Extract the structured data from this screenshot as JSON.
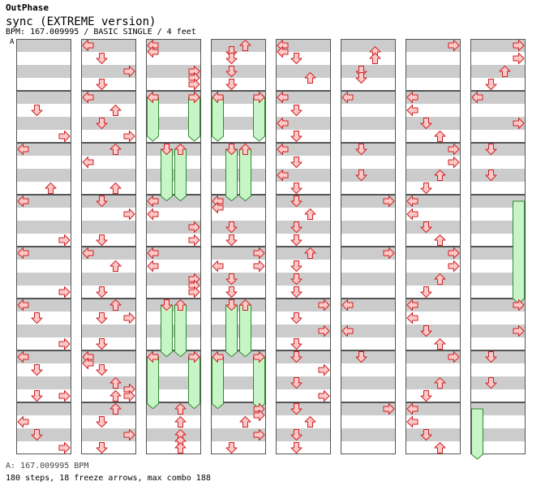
{
  "brand": "OutPhase",
  "song_title": "sync (EXTREME version)",
  "chart_info": "BPM: 167.009995 / BASIC SINGLE / 4 feet",
  "segment_marker": "A",
  "footer_bpm": "A: 167.009995 BPM",
  "footer_stats": "180 steps, 18 freeze arrows, max combo 188",
  "colors": {
    "arrow_fill": "#ffc8c8",
    "arrow_stroke": "#cc2222",
    "freeze_fill": "#c8f5c8",
    "freeze_stroke": "#2e8b2e",
    "stripe": "#cccccc",
    "measure_border": "#555555",
    "bpm_marker": "#4a7fd0"
  },
  "chart_data": {
    "type": "step-chart",
    "lanes": [
      "left",
      "down",
      "up",
      "right"
    ],
    "measures_per_column": 8,
    "quarter_beats_per_measure": 4,
    "columns": [
      [
        [],
        [
          [
            1,
            1
          ],
          [
            3,
            3
          ]
        ],
        [
          [
            0,
            0
          ],
          [
            2,
            3
          ]
        ],
        [
          [
            0,
            0
          ],
          [
            3,
            3
          ]
        ],
        [
          [
            0,
            0
          ],
          [
            3,
            3
          ]
        ],
        [
          [
            0,
            0
          ],
          [
            1,
            1
          ],
          [
            3,
            3
          ]
        ],
        [
          [
            0,
            0
          ],
          [
            1,
            1
          ],
          [
            1,
            3
          ],
          [
            3,
            3
          ]
        ],
        [
          [
            0,
            1
          ],
          [
            1,
            2
          ],
          [
            3,
            3
          ]
        ]
      ],
      [
        [
          [
            0,
            0
          ],
          [
            1,
            1
          ],
          [
            3,
            2
          ],
          [
            1,
            3
          ]
        ],
        [
          [
            0,
            0
          ],
          [
            2,
            1
          ],
          [
            1,
            2
          ],
          [
            3,
            3
          ]
        ],
        [
          [
            2,
            0
          ],
          [
            0,
            1
          ],
          [
            2,
            3
          ]
        ],
        [
          [
            1,
            0
          ],
          [
            3,
            1
          ],
          [
            1,
            3
          ]
        ],
        [
          [
            0,
            0
          ],
          [
            2,
            1
          ],
          [
            1,
            3
          ]
        ],
        [
          [
            2,
            0
          ],
          [
            1,
            1
          ],
          [
            3,
            1
          ],
          [
            1,
            3
          ]
        ],
        [
          [
            0,
            0
          ],
          [
            0,
            0.5
          ],
          [
            1,
            1
          ],
          [
            2,
            2
          ],
          [
            3,
            2.5
          ],
          [
            2,
            3
          ],
          [
            3,
            3
          ]
        ],
        [
          [
            2,
            0
          ],
          [
            1,
            1
          ],
          [
            3,
            2
          ],
          [
            1,
            3
          ]
        ]
      ],
      [
        [
          [
            0,
            0
          ],
          [
            0,
            0.5
          ],
          [
            3,
            2
          ],
          [
            3,
            2.5
          ],
          [
            3,
            3
          ]
        ],
        [
          [
            0,
            0
          ],
          [
            3,
            0
          ]
        ],
        [
          [
            1,
            0
          ],
          [
            2,
            0
          ]
        ],
        [
          [
            0,
            0
          ],
          [
            0,
            1
          ],
          [
            3,
            2
          ],
          [
            3,
            3
          ]
        ],
        [
          [
            0,
            0
          ],
          [
            0,
            1
          ],
          [
            3,
            2
          ],
          [
            3,
            2.5
          ],
          [
            3,
            3
          ]
        ],
        [
          [
            1,
            0
          ],
          [
            2,
            0
          ]
        ],
        [
          [
            0,
            0
          ],
          [
            3,
            0
          ]
        ],
        [
          [
            2,
            0
          ],
          [
            2,
            1
          ],
          [
            2,
            2
          ],
          [
            2,
            2.5
          ],
          [
            2,
            3
          ]
        ]
      ],
      [
        [
          [
            2,
            0
          ],
          [
            1,
            0.5
          ],
          [
            1,
            1
          ],
          [
            1,
            2
          ],
          [
            1,
            3
          ]
        ],
        [
          [
            0,
            0
          ],
          [
            3,
            0
          ]
        ],
        [
          [
            1,
            0
          ],
          [
            2,
            0
          ]
        ],
        [
          [
            0,
            0
          ],
          [
            0,
            0.5
          ],
          [
            1,
            2
          ],
          [
            1,
            3
          ]
        ],
        [
          [
            3,
            0
          ],
          [
            0,
            1
          ],
          [
            3,
            1
          ],
          [
            1,
            2
          ],
          [
            1,
            3
          ]
        ],
        [
          [
            1,
            0
          ],
          [
            2,
            0
          ]
        ],
        [
          [
            0,
            0
          ],
          [
            3,
            0
          ]
        ],
        [
          [
            3,
            0
          ],
          [
            3,
            0.5
          ],
          [
            2,
            1
          ],
          [
            3,
            2
          ],
          [
            1,
            3
          ]
        ]
      ],
      [
        [
          [
            0,
            0
          ],
          [
            0,
            0.5
          ],
          [
            1,
            1
          ],
          [
            2,
            2.5
          ]
        ],
        [
          [
            0,
            0
          ],
          [
            1,
            1
          ],
          [
            0,
            2
          ],
          [
            1,
            3
          ]
        ],
        [
          [
            0,
            0
          ],
          [
            1,
            1
          ],
          [
            0,
            2
          ],
          [
            1,
            3
          ]
        ],
        [
          [
            1,
            0
          ],
          [
            2,
            1
          ],
          [
            1,
            2
          ],
          [
            1,
            3
          ]
        ],
        [
          [
            2,
            0
          ],
          [
            1,
            1
          ],
          [
            1,
            2
          ],
          [
            1,
            3
          ]
        ],
        [
          [
            3,
            0
          ],
          [
            1,
            1
          ],
          [
            3,
            2
          ],
          [
            1,
            3
          ]
        ],
        [
          [
            1,
            0
          ],
          [
            3,
            1
          ],
          [
            1,
            2
          ],
          [
            3,
            3
          ]
        ],
        [
          [
            1,
            0
          ],
          [
            2,
            1
          ],
          [
            1,
            2
          ],
          [
            1,
            3
          ]
        ]
      ],
      [
        [
          [
            2,
            0.5
          ],
          [
            2,
            1
          ],
          [
            1,
            2
          ],
          [
            1,
            2.5
          ]
        ],
        [
          [
            0,
            0
          ]
        ],
        [
          [
            1,
            0
          ],
          [
            1,
            2
          ]
        ],
        [
          [
            3,
            0
          ]
        ],
        [
          [
            3,
            0
          ]
        ],
        [
          [
            0,
            0
          ],
          [
            0,
            2
          ]
        ],
        [
          [
            1,
            0
          ]
        ],
        [
          [
            3,
            0
          ]
        ]
      ],
      [
        [
          [
            3,
            0
          ]
        ],
        [
          [
            0,
            0
          ],
          [
            0,
            1
          ],
          [
            1,
            2
          ],
          [
            2,
            3
          ]
        ],
        [
          [
            3,
            0
          ],
          [
            3,
            1
          ],
          [
            2,
            2
          ],
          [
            1,
            3
          ]
        ],
        [
          [
            0,
            0
          ],
          [
            0,
            1
          ],
          [
            1,
            2
          ],
          [
            2,
            3
          ]
        ],
        [
          [
            3,
            0
          ],
          [
            3,
            1
          ],
          [
            2,
            2
          ],
          [
            1,
            3
          ]
        ],
        [
          [
            0,
            0
          ],
          [
            0,
            1
          ],
          [
            1,
            2
          ],
          [
            2,
            3
          ]
        ],
        [
          [
            3,
            0
          ],
          [
            2,
            2
          ],
          [
            1,
            3
          ]
        ],
        [
          [
            0,
            0
          ],
          [
            0,
            1
          ],
          [
            1,
            2
          ],
          [
            2,
            3
          ]
        ]
      ],
      [
        [
          [
            3,
            0
          ],
          [
            3,
            1
          ],
          [
            2,
            2
          ],
          [
            1,
            3
          ]
        ],
        [
          [
            0,
            0
          ],
          [
            3,
            2
          ]
        ],
        [
          [
            1,
            0
          ],
          [
            1,
            2
          ]
        ],
        [],
        [],
        [
          [
            3,
            0
          ],
          [
            3,
            2
          ]
        ],
        [
          [
            1,
            0
          ],
          [
            1,
            2
          ]
        ],
        []
      ]
    ],
    "freezes": [
      {
        "column": 2,
        "lane": 0,
        "start": [
          1,
          0
        ],
        "end": [
          1,
          3
        ]
      },
      {
        "column": 2,
        "lane": 3,
        "start": [
          1,
          0
        ],
        "end": [
          1,
          3
        ]
      },
      {
        "column": 2,
        "lane": 1,
        "start": [
          2,
          0
        ],
        "end": [
          2,
          3.6
        ]
      },
      {
        "column": 2,
        "lane": 2,
        "start": [
          2,
          0
        ],
        "end": [
          2,
          3.6
        ]
      },
      {
        "column": 2,
        "lane": 1,
        "start": [
          5,
          0
        ],
        "end": [
          5,
          3.6
        ]
      },
      {
        "column": 2,
        "lane": 2,
        "start": [
          5,
          0
        ],
        "end": [
          5,
          3.6
        ]
      },
      {
        "column": 2,
        "lane": 0,
        "start": [
          6,
          0
        ],
        "end": [
          6,
          3.6
        ]
      },
      {
        "column": 2,
        "lane": 3,
        "start": [
          6,
          0
        ],
        "end": [
          6,
          3.6
        ]
      },
      {
        "column": 3,
        "lane": 0,
        "start": [
          1,
          0
        ],
        "end": [
          1,
          3
        ]
      },
      {
        "column": 3,
        "lane": 3,
        "start": [
          1,
          0
        ],
        "end": [
          1,
          3
        ]
      },
      {
        "column": 3,
        "lane": 1,
        "start": [
          2,
          0
        ],
        "end": [
          2,
          3.6
        ]
      },
      {
        "column": 3,
        "lane": 2,
        "start": [
          2,
          0
        ],
        "end": [
          2,
          3.6
        ]
      },
      {
        "column": 3,
        "lane": 1,
        "start": [
          5,
          0
        ],
        "end": [
          5,
          3.6
        ]
      },
      {
        "column": 3,
        "lane": 2,
        "start": [
          5,
          0
        ],
        "end": [
          5,
          3.6
        ]
      },
      {
        "column": 3,
        "lane": 0,
        "start": [
          6,
          0
        ],
        "end": [
          6,
          3.6
        ]
      },
      {
        "column": 3,
        "lane": 3,
        "start": [
          6,
          0
        ],
        "end": [
          6,
          3.6
        ]
      },
      {
        "column": 7,
        "lane": 3,
        "start": [
          3,
          0
        ],
        "end": [
          4,
          3.5
        ]
      },
      {
        "column": 7,
        "lane": 0,
        "start": [
          7,
          0
        ],
        "end": [
          7,
          3.5
        ]
      }
    ]
  }
}
